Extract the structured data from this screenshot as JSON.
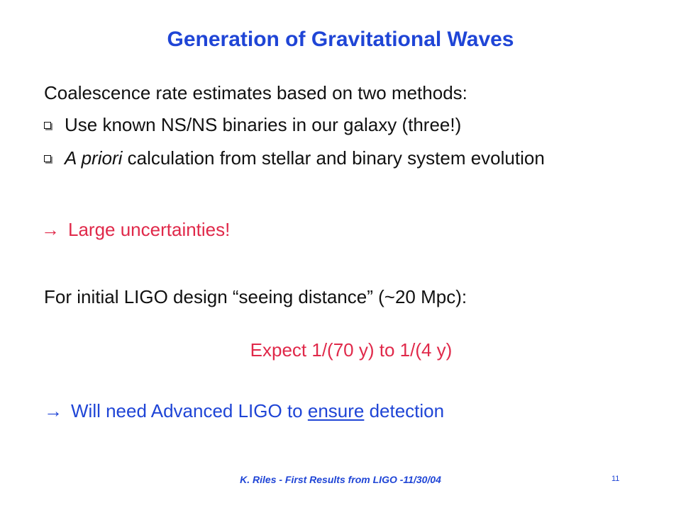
{
  "slide": {
    "title": "Generation of Gravitational Waves",
    "intro": "Coalescence rate estimates based on two methods:",
    "bullets": [
      {
        "text": "Use known NS/NS binaries in our galaxy (three!)"
      },
      {
        "emph": "A priori",
        "text": " calculation from stellar and binary system evolution"
      }
    ],
    "arrow_symbol": "→",
    "uncertainties": "Large uncertainties!",
    "ligo_line": "For initial LIGO design “seeing distance” (~20 Mpc):",
    "expect": "Expect 1/(70 y) to 1/(4 y)",
    "advanced": {
      "before": "Will need Advanced LIGO to ",
      "underlined": "ensure",
      "after": " detection"
    },
    "footer": "K. Riles - First Results from LIGO -11/30/04",
    "page_number": "11"
  },
  "colors": {
    "title_blue": "#1f45d6",
    "accent_red": "#e0294a",
    "text": "#111111",
    "background": "#ffffff"
  },
  "icons": {
    "bullet": "checkbox-square-icon",
    "arrow": "right-arrow-icon"
  }
}
